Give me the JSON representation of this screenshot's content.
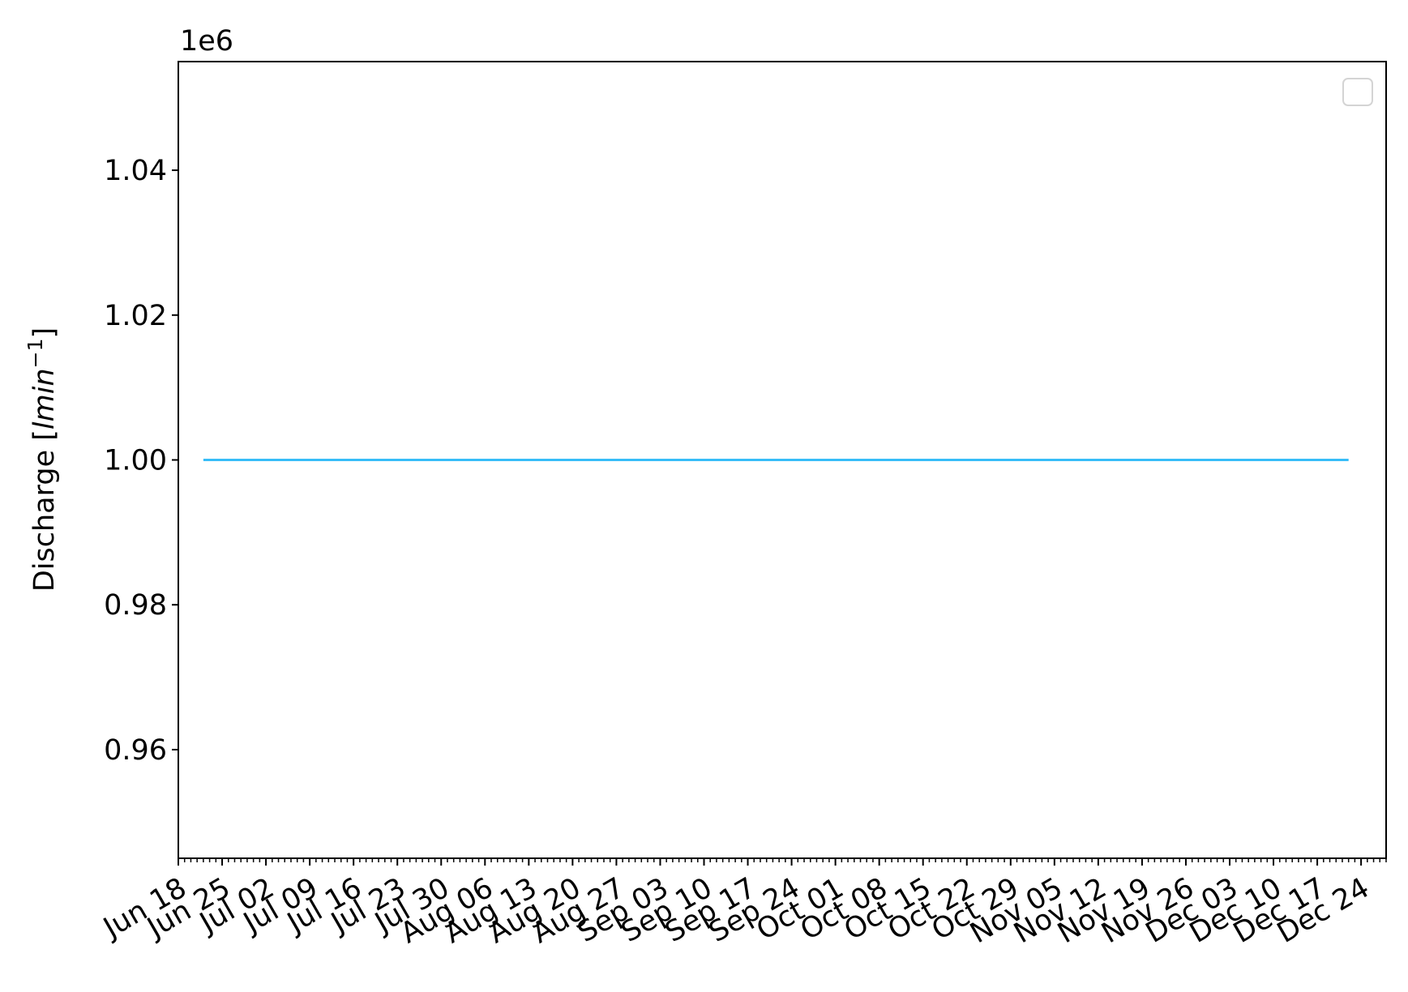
{
  "chart_data": {
    "type": "line",
    "x_type": "date",
    "ylabel": "Discharge [l min⁻¹]",
    "ylabel_parts": {
      "prefix": "Discharge [",
      "var": "lmin",
      "exp": "−1",
      "suffix": "]"
    },
    "y_offset_label": "1e6",
    "ylim": [
      0.945,
      1.055
    ],
    "xlim": [
      "2018-06-18",
      "2018-12-28"
    ],
    "y_ticks": [
      0.96,
      0.98,
      1.0,
      1.02,
      1.04
    ],
    "y_tick_labels": [
      "0.96",
      "0.98",
      "1.00",
      "1.02",
      "1.04"
    ],
    "x_ticks": [
      "2018-06-18",
      "2018-06-25",
      "2018-07-02",
      "2018-07-09",
      "2018-07-16",
      "2018-07-23",
      "2018-07-30",
      "2018-08-06",
      "2018-08-13",
      "2018-08-20",
      "2018-08-27",
      "2018-09-03",
      "2018-09-10",
      "2018-09-17",
      "2018-09-24",
      "2018-10-01",
      "2018-10-08",
      "2018-10-15",
      "2018-10-22",
      "2018-10-29",
      "2018-11-05",
      "2018-11-12",
      "2018-11-19",
      "2018-11-26",
      "2018-12-03",
      "2018-12-10",
      "2018-12-17",
      "2018-12-24"
    ],
    "x_tick_labels": [
      "Jun 18",
      "Jun 25",
      "Jul 02",
      "Jul 09",
      "Jul 16",
      "Jul 23",
      "Jul 30",
      "Aug 06",
      "Aug 13",
      "Aug 20",
      "Aug 27",
      "Sep 03",
      "Sep 10",
      "Sep 17",
      "Sep 24",
      "Oct 01",
      "Oct 08",
      "Oct 15",
      "Oct 22",
      "Oct 29",
      "Nov 05",
      "Nov 12",
      "Nov 19",
      "Nov 26",
      "Dec 03",
      "Dec 10",
      "Dec 17",
      "Dec 24"
    ],
    "minor_ticks": "daily",
    "series": [
      {
        "color": "#38bdf8",
        "x": [
          "2018-06-22",
          "2018-12-22"
        ],
        "y": [
          1.0,
          1.0
        ]
      }
    ],
    "legend": {
      "placement": "top-right",
      "entries": []
    },
    "grid": false
  }
}
